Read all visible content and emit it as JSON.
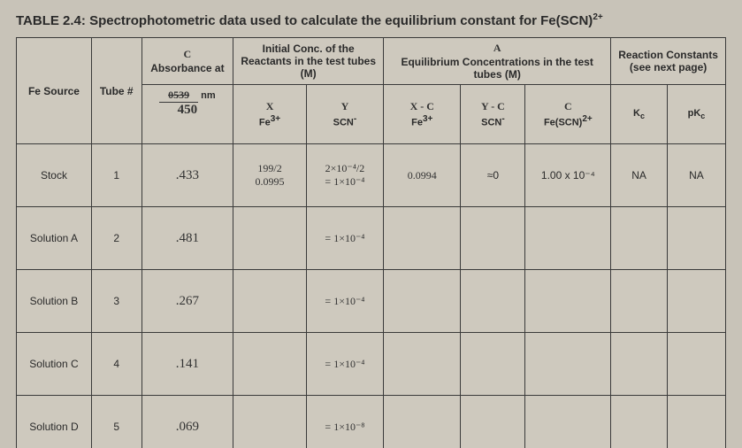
{
  "title_prefix": "TABLE 2.4:  Spectrophotometric data used to calculate the equilibrium constant for Fe(SCN)",
  "title_super": "2+",
  "headers": {
    "fe_source": "Fe Source",
    "tube": "Tube #",
    "absorbance_top": "Absorbance at",
    "initial_group": "Initial Conc. of the Reactants in the test tubes (M)",
    "equil_group": "Equilibrium Concentrations in the test tubes (M)",
    "rxn_group": "Reaction Constants (see next page)",
    "x": "X",
    "y": "Y",
    "fe3": "Fe",
    "fe3_sup": "3+",
    "scn": "SCN",
    "scn_sup": "-",
    "fescn": "Fe(SCN)",
    "fescn_sup": "2+",
    "kc": "K",
    "kc_sub": "c",
    "pkc": "pK",
    "pkc_sub": "c",
    "nm": "nm"
  },
  "hw_top": {
    "c_over_abs": "C",
    "a_over_equil": "A",
    "nm_struck": "0539",
    "nm_below": "450",
    "x_minus_c": "X - C",
    "y_minus_c": "Y - C",
    "c_col": "C"
  },
  "rows": [
    {
      "src": "Stock",
      "tube": "1",
      "abs_hw": ".433",
      "x_hw": "199/2\n0.0995",
      "y_hw": "2×10⁻⁴/2\n= 1×10⁻⁴",
      "fe_hw": "0.0994",
      "scn": "≈0",
      "fescn": "1.00 x 10⁻⁴",
      "kc": "NA",
      "pkc": "NA"
    },
    {
      "src": "Solution A",
      "tube": "2",
      "abs_hw": ".481",
      "x_hw": "",
      "y_hw": "= 1×10⁻⁴",
      "fe_hw": "",
      "scn": "",
      "fescn": "",
      "kc": "",
      "pkc": ""
    },
    {
      "src": "Solution B",
      "tube": "3",
      "abs_hw": ".267",
      "x_hw": "",
      "y_hw": "= 1×10⁻⁴",
      "fe_hw": "",
      "scn": "",
      "fescn": "",
      "kc": "",
      "pkc": ""
    },
    {
      "src": "Solution C",
      "tube": "4",
      "abs_hw": ".141",
      "x_hw": "",
      "y_hw": "= 1×10⁻⁴",
      "fe_hw": "",
      "scn": "",
      "fescn": "",
      "kc": "",
      "pkc": ""
    },
    {
      "src": "Solution D",
      "tube": "5",
      "abs_hw": ".069",
      "x_hw": "",
      "y_hw": "= 1×10⁻⁸",
      "fe_hw": "",
      "scn": "",
      "fescn": "",
      "kc": "",
      "pkc": ""
    }
  ]
}
